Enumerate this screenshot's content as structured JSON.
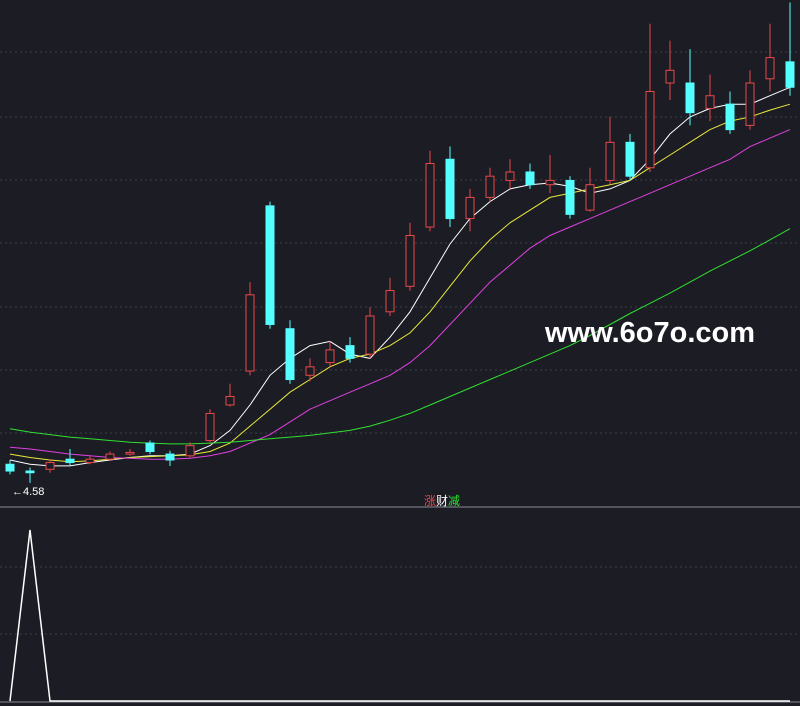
{
  "chart_data": [
    {
      "type": "candlestick",
      "ylim": [
        4.26,
        10.28
      ],
      "up_color": "#e8484a",
      "down_color": "#54ffff",
      "candles": [
        [
          4.8,
          4.72,
          4.85,
          4.68
        ],
        [
          4.72,
          4.7,
          4.76,
          4.58
        ],
        [
          4.74,
          4.82,
          4.86,
          4.7
        ],
        [
          4.86,
          4.82,
          4.98,
          4.78
        ],
        [
          4.82,
          4.86,
          4.9,
          4.8
        ],
        [
          4.86,
          4.92,
          4.95,
          4.84
        ],
        [
          4.92,
          4.94,
          4.98,
          4.9
        ],
        [
          5.05,
          4.95,
          5.08,
          4.92
        ],
        [
          4.92,
          4.85,
          4.96,
          4.78
        ],
        [
          4.9,
          5.02,
          5.06,
          4.88
        ],
        [
          5.08,
          5.4,
          5.45,
          5.05
        ],
        [
          5.5,
          5.6,
          5.75,
          5.48
        ],
        [
          5.9,
          6.8,
          6.95,
          5.85
        ],
        [
          7.85,
          6.45,
          7.9,
          6.4
        ],
        [
          6.4,
          5.8,
          6.5,
          5.75
        ],
        [
          5.85,
          5.95,
          6.05,
          5.78
        ],
        [
          6.0,
          6.15,
          6.25,
          5.95
        ],
        [
          6.2,
          6.05,
          6.3,
          6.0
        ],
        [
          6.1,
          6.55,
          6.65,
          6.05
        ],
        [
          6.6,
          6.85,
          7.0,
          6.55
        ],
        [
          6.9,
          7.5,
          7.65,
          6.85
        ],
        [
          7.6,
          8.35,
          8.5,
          7.55
        ],
        [
          8.4,
          7.7,
          8.55,
          7.6
        ],
        [
          7.7,
          7.95,
          8.05,
          7.55
        ],
        [
          7.95,
          8.2,
          8.3,
          7.9
        ],
        [
          8.15,
          8.25,
          8.4,
          8.05
        ],
        [
          8.25,
          8.1,
          8.35,
          8.05
        ],
        [
          8.1,
          8.15,
          8.45,
          8.0
        ],
        [
          8.15,
          7.75,
          8.2,
          7.7
        ],
        [
          7.8,
          8.1,
          8.3,
          7.78
        ],
        [
          8.15,
          8.6,
          8.9,
          8.1
        ],
        [
          8.6,
          8.2,
          8.7,
          8.15
        ],
        [
          8.3,
          9.2,
          10.0,
          8.25
        ],
        [
          9.3,
          9.45,
          9.8,
          9.1
        ],
        [
          9.3,
          8.95,
          9.7,
          8.8
        ],
        [
          9.0,
          9.15,
          9.4,
          8.85
        ],
        [
          9.05,
          8.75,
          9.2,
          8.7
        ],
        [
          8.8,
          9.3,
          9.45,
          8.75
        ],
        [
          9.35,
          9.6,
          10.0,
          9.2
        ],
        [
          9.55,
          9.25,
          10.25,
          9.15
        ]
      ],
      "series": [
        {
          "color": "#ffffff",
          "values": [
            4.85,
            4.8,
            4.78,
            4.78,
            4.82,
            4.85,
            4.88,
            4.9,
            4.9,
            4.92,
            5.02,
            5.2,
            5.5,
            5.85,
            6.05,
            6.2,
            6.25,
            6.1,
            6.05,
            6.3,
            6.6,
            7.0,
            7.4,
            7.7,
            7.9,
            8.05,
            8.1,
            8.12,
            8.08,
            8.0,
            8.05,
            8.15,
            8.4,
            8.7,
            8.9,
            9.0,
            9.05,
            9.05,
            9.15,
            9.25
          ]
        },
        {
          "color": "#e8e83a",
          "values": [
            4.92,
            4.88,
            4.85,
            4.83,
            4.84,
            4.86,
            4.88,
            4.89,
            4.9,
            4.91,
            4.95,
            5.05,
            5.25,
            5.45,
            5.65,
            5.8,
            5.95,
            6.05,
            6.1,
            6.2,
            6.35,
            6.6,
            6.9,
            7.2,
            7.45,
            7.65,
            7.8,
            7.95,
            8.0,
            8.05,
            8.1,
            8.15,
            8.3,
            8.45,
            8.6,
            8.75,
            8.85,
            8.9,
            8.98,
            9.05
          ]
        },
        {
          "color": "#e040e0",
          "values": [
            5.0,
            4.98,
            4.95,
            4.92,
            4.9,
            4.88,
            4.87,
            4.86,
            4.86,
            4.87,
            4.9,
            4.95,
            5.05,
            5.15,
            5.3,
            5.45,
            5.55,
            5.65,
            5.75,
            5.85,
            6.0,
            6.2,
            6.45,
            6.7,
            6.95,
            7.15,
            7.35,
            7.5,
            7.6,
            7.7,
            7.8,
            7.9,
            8.0,
            8.1,
            8.2,
            8.3,
            8.4,
            8.55,
            8.65,
            8.75
          ]
        },
        {
          "color": "#30e030",
          "values": [
            5.22,
            5.18,
            5.15,
            5.12,
            5.1,
            5.08,
            5.06,
            5.05,
            5.04,
            5.04,
            5.05,
            5.06,
            5.08,
            5.1,
            5.12,
            5.14,
            5.17,
            5.2,
            5.25,
            5.32,
            5.4,
            5.5,
            5.6,
            5.7,
            5.8,
            5.9,
            6.0,
            6.1,
            6.2,
            6.32,
            6.45,
            6.58,
            6.7,
            6.82,
            6.95,
            7.08,
            7.2,
            7.32,
            7.45,
            7.58
          ]
        }
      ],
      "low_label": {
        "value": 4.58,
        "label": "←4.58",
        "index": 1
      },
      "watermark": "www.6o7o.com"
    },
    {
      "type": "line",
      "name_parts": [
        "涨",
        "财",
        "减"
      ],
      "name_colors": [
        "#e8484a",
        "#ffffff",
        "#30e030"
      ],
      "color": "#ffffff",
      "ylim": [
        0,
        1
      ],
      "values": [
        0,
        1,
        0,
        0,
        0,
        0,
        0,
        0,
        0,
        0,
        0,
        0,
        0,
        0,
        0,
        0,
        0,
        0,
        0,
        0,
        0,
        0,
        0,
        0,
        0,
        0,
        0,
        0,
        0,
        0,
        0,
        0,
        0,
        0,
        0,
        0,
        0,
        0,
        0,
        0
      ]
    }
  ]
}
